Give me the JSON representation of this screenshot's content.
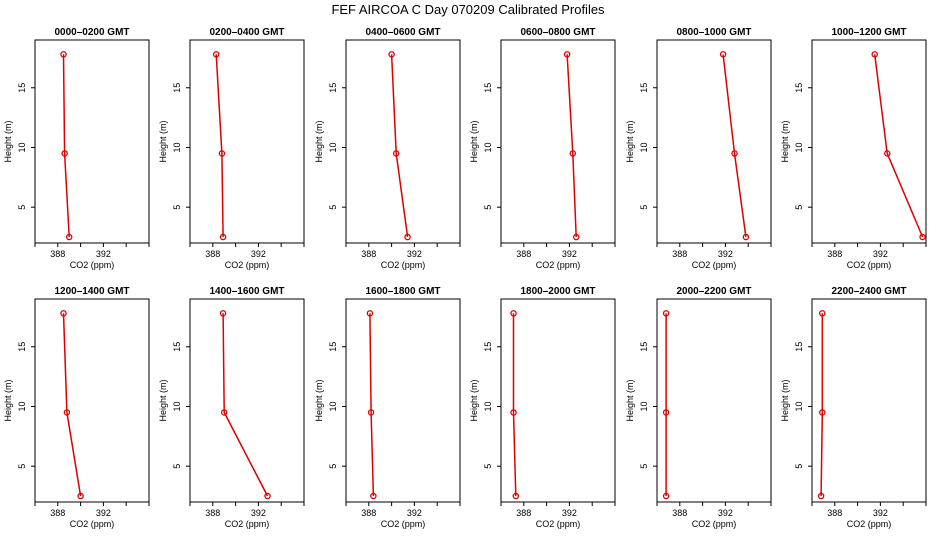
{
  "figure": {
    "title": "FEF AIRCOA C  Day 070209  Calibrated Profiles"
  },
  "chart_data": {
    "type": "line",
    "line_color": "#dd0000",
    "xlabel": "CO2 (ppm)",
    "ylabel": "Height (m)",
    "xlim": [
      386,
      396
    ],
    "ylim": [
      2,
      19
    ],
    "xticks": [
      "388",
      "392"
    ],
    "xtick_values": [
      388,
      392
    ],
    "xtick_minor_values": [
      386,
      390,
      394,
      396
    ],
    "yticks": [
      "5",
      "10",
      "15"
    ],
    "ytick_values": [
      5,
      10,
      15
    ],
    "grid": false,
    "panels": [
      {
        "title": "0000–0200 GMT",
        "co2": [
          389.0,
          388.6,
          388.5
        ],
        "height": [
          2.5,
          9.5,
          17.8
        ]
      },
      {
        "title": "0200–0400 GMT",
        "co2": [
          388.9,
          388.8,
          388.3
        ],
        "height": [
          2.5,
          9.5,
          17.8
        ]
      },
      {
        "title": "0400–0600 GMT",
        "co2": [
          391.4,
          390.4,
          390.0
        ],
        "height": [
          2.5,
          9.5,
          17.8
        ]
      },
      {
        "title": "0600–0800 GMT",
        "co2": [
          392.6,
          392.3,
          391.8
        ],
        "height": [
          2.5,
          9.5,
          17.8
        ]
      },
      {
        "title": "0800–1000 GMT",
        "co2": [
          393.8,
          392.8,
          391.8
        ],
        "height": [
          2.5,
          9.5,
          17.8
        ]
      },
      {
        "title": "1000–1200 GMT",
        "co2": [
          395.7,
          392.6,
          391.5
        ],
        "height": [
          2.5,
          9.5,
          17.8
        ]
      },
      {
        "title": "1200–1400 GMT",
        "co2": [
          390.0,
          388.8,
          388.5
        ],
        "height": [
          2.5,
          9.5,
          17.8
        ]
      },
      {
        "title": "1400–1600 GMT",
        "co2": [
          392.8,
          389.0,
          388.9
        ],
        "height": [
          2.5,
          9.5,
          17.8
        ]
      },
      {
        "title": "1600–1800 GMT",
        "co2": [
          388.4,
          388.2,
          388.1
        ],
        "height": [
          2.5,
          9.5,
          17.8
        ]
      },
      {
        "title": "1800–2000 GMT",
        "co2": [
          387.3,
          387.1,
          387.1
        ],
        "height": [
          2.5,
          9.5,
          17.8
        ]
      },
      {
        "title": "2000–2200 GMT",
        "co2": [
          386.8,
          386.8,
          386.8
        ],
        "height": [
          2.5,
          9.5,
          17.8
        ]
      },
      {
        "title": "2200–2400 GMT",
        "co2": [
          386.8,
          386.9,
          386.9
        ],
        "height": [
          2.5,
          9.5,
          17.8
        ]
      }
    ]
  }
}
